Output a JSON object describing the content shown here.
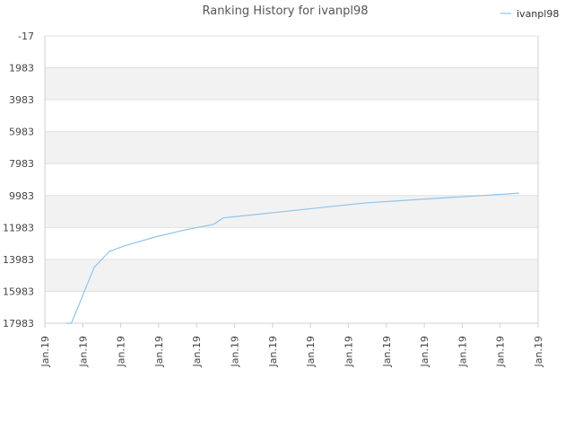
{
  "chart_data": {
    "type": "line",
    "title": "Ranking History for ivanpl98",
    "xlabel": "",
    "ylabel": "",
    "y_reversed": true,
    "ylim": [
      -17,
      17983
    ],
    "yticks": [
      "-17",
      "1983",
      "3983",
      "5983",
      "7983",
      "9983",
      "11983",
      "13983",
      "15983",
      "17983"
    ],
    "xticks": [
      "Jan.19",
      "Jan.19",
      "Jan.19",
      "Jan.19",
      "Jan.19",
      "Jan.19",
      "Jan.19",
      "Jan.19",
      "Jan.19",
      "Jan.19",
      "Jan.19",
      "Jan.19",
      "Jan.19",
      "Jan.19"
    ],
    "grid": true,
    "alternating_bands": true,
    "legend_position": "top-right",
    "colors": {
      "series": "#90c4ec",
      "band": "#f2f2f2",
      "grid": "#e0e0e0",
      "axis": "#d0d0d0"
    },
    "series": [
      {
        "name": "ivanpl98",
        "x_index": [
          0.55,
          0.7,
          1.3,
          1.7,
          2.1,
          2.9,
          3.6,
          4.45,
          4.7,
          5.5,
          6.5,
          7.5,
          8.5,
          9.5,
          10.5,
          11.5,
          12.5
        ],
        "values": [
          17983,
          17983,
          14483,
          13483,
          13133,
          12583,
          12183,
          11783,
          11383,
          11183,
          10933,
          10683,
          10433,
          10283,
          10133,
          9983,
          9833
        ]
      }
    ]
  }
}
